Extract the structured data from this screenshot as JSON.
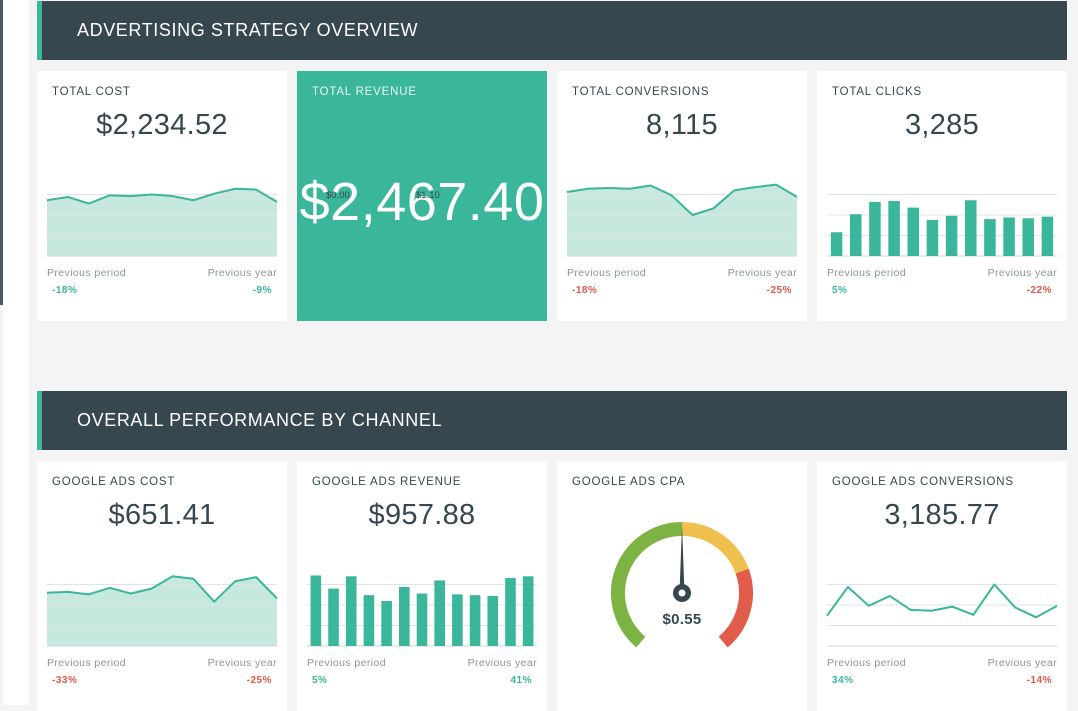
{
  "sections": [
    {
      "title": "ADVERTISING STRATEGY OVERVIEW",
      "cards": [
        {
          "title": "TOTAL COST",
          "value": "$2,234.52",
          "prev_label": "Previous period",
          "year_label": "Previous year",
          "prev_pct": "-18%",
          "year_pct": "-9%"
        },
        {
          "title": "TOTAL REVENUE",
          "value": "$2,467.40"
        },
        {
          "title": "TOTAL CONVERSIONS",
          "value": "8,115",
          "prev_label": "Previous period",
          "year_label": "Previous year",
          "prev_pct": "-18%",
          "year_pct": "-25%"
        },
        {
          "title": "TOTAL CLICKS",
          "value": "3,285",
          "prev_label": "Previous period",
          "year_label": "Previous year",
          "prev_pct": "5%",
          "year_pct": "-22%"
        }
      ]
    },
    {
      "title": "OVERALL PERFORMANCE BY CHANNEL",
      "cards": [
        {
          "title": "GOOGLE ADS COST",
          "value": "$651.41",
          "prev_label": "Previous period",
          "year_label": "Previous year",
          "prev_pct": "-33%",
          "year_pct": "-25%"
        },
        {
          "title": "GOOGLE ADS REVENUE",
          "value": "$957.88",
          "prev_label": "Previous period",
          "year_label": "Previous year",
          "prev_pct": "5%",
          "year_pct": "41%"
        },
        {
          "title": "GOOGLE ADS CPA",
          "value": "$0.55",
          "min": "$0.00",
          "max": "$1.10"
        },
        {
          "title": "GOOGLE ADS CONVERSIONS",
          "value": "3,185.77",
          "prev_label": "Previous period",
          "year_label": "Previous year",
          "prev_pct": "34%",
          "year_pct": "-14%"
        }
      ]
    }
  ],
  "chart_data": [
    {
      "type": "area",
      "title": "TOTAL COST",
      "values": [
        68,
        72,
        64,
        74,
        73,
        75,
        73,
        68,
        76,
        82,
        81,
        66
      ]
    },
    {
      "type": "area",
      "title": "TOTAL CONVERSIONS",
      "values": [
        78,
        82,
        83,
        82,
        86,
        74,
        50,
        58,
        80,
        84,
        87,
        72
      ]
    },
    {
      "type": "bar",
      "title": "TOTAL CLICKS",
      "values": [
        29,
        51,
        66,
        67,
        59,
        44,
        49,
        68,
        45,
        47,
        46,
        48
      ]
    },
    {
      "type": "area",
      "title": "GOOGLE ADS COST",
      "values": [
        65,
        66,
        63,
        71,
        64,
        70,
        85,
        82,
        54,
        79,
        84,
        58
      ]
    },
    {
      "type": "bar",
      "title": "GOOGLE ADS REVENUE",
      "values": [
        86,
        70,
        85,
        62,
        55,
        72,
        64,
        80,
        63,
        62,
        61,
        83,
        85
      ]
    },
    {
      "type": "line",
      "title": "GOOGLE ADS CONVERSIONS",
      "values": [
        37,
        72,
        49,
        61,
        44,
        43,
        48,
        38,
        75,
        47,
        35,
        49
      ]
    },
    {
      "type": "gauge",
      "title": "GOOGLE ADS CPA",
      "value": 0.55,
      "min": 0.0,
      "max": 1.1
    }
  ],
  "colors": {
    "accent": "#3ab69a",
    "header": "#37474f",
    "area_fill": "#c6e8de",
    "negative": "#e0574a",
    "gauge_green": "#7cb343",
    "gauge_yellow": "#efc04e",
    "gauge_red": "#e15c4a"
  }
}
